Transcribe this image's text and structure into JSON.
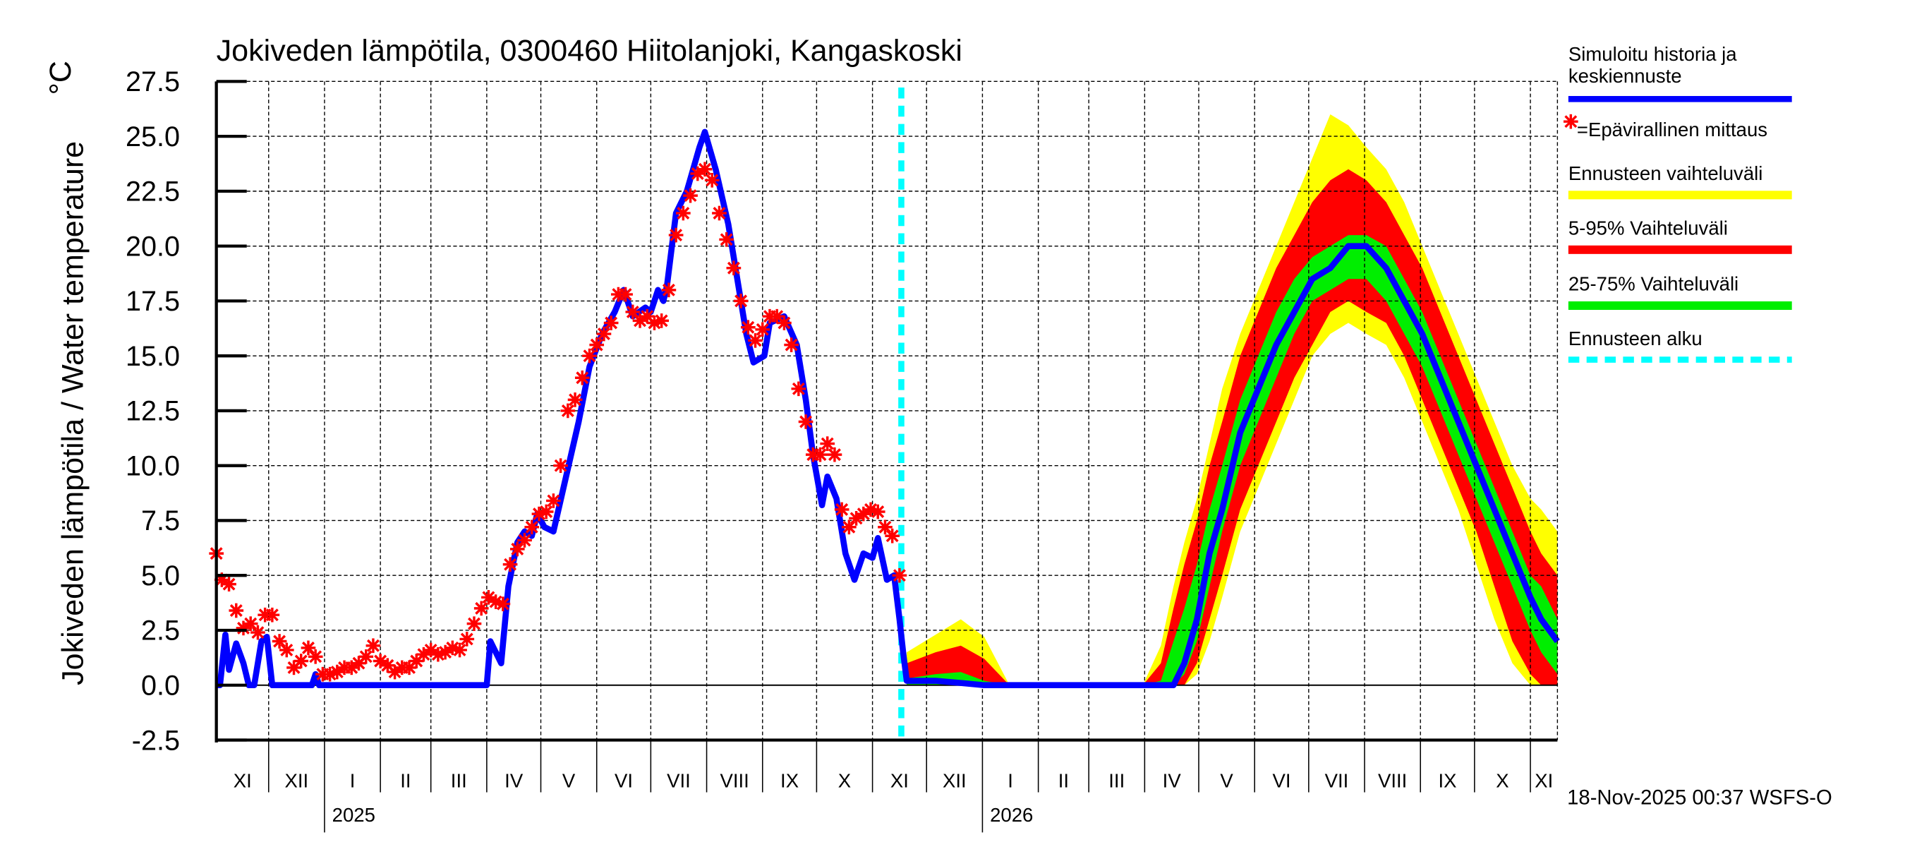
{
  "chart_data": {
    "type": "line",
    "title": "Jokiveden lämpötila, 0300460 Hiitolanjoki, Kangaskoski",
    "ylabel": "Jokiveden lämpötila / Water temperature",
    "yunit": "°C",
    "ylim": [
      -2.5,
      27.5
    ],
    "y_ticks": [
      "-2.5",
      "0.0",
      "2.5",
      "5.0",
      "7.5",
      "10.0",
      "12.5",
      "15.0",
      "17.5",
      "20.0",
      "22.5",
      "25.0",
      "27.5"
    ],
    "xlim": [
      "2024-11-02",
      "2026-11-16"
    ],
    "month_labels": [
      "XI",
      "XII",
      "I",
      "II",
      "III",
      "IV",
      "V",
      "VI",
      "VII",
      "VIII",
      "IX",
      "X",
      "XI",
      "XII",
      "I",
      "II",
      "III",
      "IV",
      "V",
      "VI",
      "VII",
      "VIII",
      "IX",
      "X",
      "XI"
    ],
    "year_labels": [
      {
        "year": "2025",
        "date": "2025-01-01"
      },
      {
        "year": "2026",
        "date": "2026-01-01"
      }
    ],
    "grid": true,
    "legend_position": "right",
    "forecast_start": "2025-11-17",
    "timestamp": "18-Nov-2025 00:37 WSFS-O",
    "colors": {
      "simulated": "#0000ff",
      "observed": "#ff0000",
      "range_full": "#ffff00",
      "range_5_95": "#ff0000",
      "range_25_75": "#00ee00",
      "forecast_start": "#00ffff"
    },
    "legend": {
      "simulated_line1": "Simuloitu historia ja",
      "simulated_line2": "keskiennuste",
      "observed": "=Epävirallinen mittaus",
      "range_full": "Ennusteen vaihteluväli",
      "range_5_95": "5-95% Vaihteluväli",
      "range_25_75": "25-75% Vaihteluväli",
      "forecast_start": "Ennusteen alku"
    },
    "simulated_history": {
      "dates": [
        "2024-11-02",
        "2024-11-04",
        "2024-11-07",
        "2024-11-09",
        "2024-11-13",
        "2024-11-17",
        "2024-11-20",
        "2024-11-23",
        "2024-11-27",
        "2024-11-30",
        "2024-12-03",
        "2024-12-25",
        "2024-12-27",
        "2024-12-29",
        "2025-04-01",
        "2025-04-03",
        "2025-04-09",
        "2025-04-13",
        "2025-04-18",
        "2025-04-22",
        "2025-04-26",
        "2025-04-29",
        "2025-05-03",
        "2025-05-08",
        "2025-05-15",
        "2025-05-22",
        "2025-05-28",
        "2025-06-04",
        "2025-06-11",
        "2025-06-16",
        "2025-06-21",
        "2025-06-28",
        "2025-07-01",
        "2025-07-05",
        "2025-07-08",
        "2025-07-10",
        "2025-07-15",
        "2025-07-21",
        "2025-07-28",
        "2025-07-31",
        "2025-08-06",
        "2025-08-13",
        "2025-08-17",
        "2025-08-23",
        "2025-08-27",
        "2025-09-02",
        "2025-09-05",
        "2025-09-13",
        "2025-09-20",
        "2025-09-25",
        "2025-09-29",
        "2025-10-04",
        "2025-10-07",
        "2025-10-12",
        "2025-10-17",
        "2025-10-22",
        "2025-10-27",
        "2025-11-01",
        "2025-11-04",
        "2025-11-09",
        "2025-11-13",
        "2025-11-16",
        "2025-11-18",
        "2025-11-20"
      ],
      "values": [
        0,
        0,
        2.3,
        0.7,
        1.9,
        1.0,
        0,
        0,
        2.0,
        2.2,
        0,
        0,
        0.5,
        0,
        0,
        2.0,
        1.0,
        4.5,
        6.5,
        7.0,
        6.8,
        7.8,
        7.2,
        7.0,
        9.5,
        12,
        14.5,
        16,
        17,
        18,
        16.8,
        17.2,
        17,
        18,
        17.5,
        18.2,
        21.5,
        22.5,
        24.5,
        25.2,
        23.5,
        21,
        19,
        16,
        14.7,
        15,
        16.5,
        16.8,
        15.5,
        13,
        10.5,
        8.2,
        9.5,
        8.5,
        6,
        4.8,
        6,
        5.8,
        6.7,
        4.8,
        5,
        3,
        1.5,
        0.2
      ]
    },
    "observations": {
      "dates": [
        "2024-11-02",
        "2024-11-05",
        "2024-11-09",
        "2024-11-13",
        "2024-11-17",
        "2024-11-21",
        "2024-11-25",
        "2024-11-29",
        "2024-12-03",
        "2024-12-07",
        "2024-12-11",
        "2024-12-15",
        "2024-12-19",
        "2024-12-23",
        "2024-12-27",
        "2024-12-31",
        "2025-01-04",
        "2025-01-08",
        "2025-01-12",
        "2025-01-16",
        "2025-01-20",
        "2025-01-24",
        "2025-01-28",
        "2025-02-01",
        "2025-02-05",
        "2025-02-09",
        "2025-02-13",
        "2025-02-17",
        "2025-02-21",
        "2025-02-25",
        "2025-03-01",
        "2025-03-05",
        "2025-03-09",
        "2025-03-13",
        "2025-03-17",
        "2025-03-21",
        "2025-03-25",
        "2025-03-29",
        "2025-04-02",
        "2025-04-06",
        "2025-04-10",
        "2025-04-14",
        "2025-04-18",
        "2025-04-22",
        "2025-04-26",
        "2025-04-30",
        "2025-05-04",
        "2025-05-08",
        "2025-05-12",
        "2025-05-16",
        "2025-05-20",
        "2025-05-24",
        "2025-05-28",
        "2025-06-01",
        "2025-06-05",
        "2025-06-09",
        "2025-06-13",
        "2025-06-17",
        "2025-06-21",
        "2025-06-25",
        "2025-06-29",
        "2025-07-03",
        "2025-07-07",
        "2025-07-11",
        "2025-07-15",
        "2025-07-19",
        "2025-07-23",
        "2025-07-27",
        "2025-07-31",
        "2025-08-04",
        "2025-08-08",
        "2025-08-12",
        "2025-08-16",
        "2025-08-20",
        "2025-08-24",
        "2025-08-28",
        "2025-09-01",
        "2025-09-05",
        "2025-09-09",
        "2025-09-13",
        "2025-09-17",
        "2025-09-21",
        "2025-09-25",
        "2025-09-29",
        "2025-10-03",
        "2025-10-07",
        "2025-10-11",
        "2025-10-15",
        "2025-10-19",
        "2025-10-23",
        "2025-10-27",
        "2025-10-31",
        "2025-11-04",
        "2025-11-08",
        "2025-11-12",
        "2025-11-16"
      ],
      "values": [
        6.0,
        4.8,
        4.6,
        3.4,
        2.6,
        2.8,
        2.4,
        3.2,
        3.2,
        2.0,
        1.6,
        0.8,
        1.1,
        1.7,
        1.3,
        0.5,
        0.5,
        0.6,
        0.8,
        0.8,
        1.0,
        1.3,
        1.8,
        1.1,
        0.9,
        0.6,
        0.8,
        0.8,
        1.1,
        1.4,
        1.6,
        1.4,
        1.5,
        1.7,
        1.6,
        2.1,
        2.8,
        3.5,
        4.0,
        3.8,
        3.7,
        5.5,
        6.2,
        6.6,
        7.2,
        7.8,
        7.9,
        8.4,
        10.0,
        12.5,
        13.0,
        14.0,
        15.0,
        15.5,
        16.0,
        16.5,
        17.8,
        17.8,
        17.0,
        16.6,
        16.8,
        16.5,
        16.6,
        18.0,
        20.5,
        21.5,
        22.3,
        23.3,
        23.5,
        23.0,
        21.5,
        20.3,
        19.0,
        17.5,
        16.3,
        15.7,
        16.2,
        16.8,
        16.8,
        16.5,
        15.5,
        13.5,
        12.0,
        10.5,
        10.5,
        11.0,
        10.5,
        8.0,
        7.2,
        7.6,
        7.8,
        8.0,
        7.9,
        7.2,
        6.8,
        5.0
      ]
    },
    "forecast": {
      "dates": [
        "2025-11-20",
        "2025-12-06",
        "2025-12-20",
        "2026-01-02",
        "2026-01-16",
        "2026-03-31",
        "2026-04-10",
        "2026-04-17",
        "2026-04-23",
        "2026-04-30",
        "2026-05-07",
        "2026-05-14",
        "2026-05-24",
        "2026-06-03",
        "2026-06-13",
        "2026-06-23",
        "2026-07-03",
        "2026-07-13",
        "2026-07-23",
        "2026-08-02",
        "2026-08-13",
        "2026-08-23",
        "2026-09-02",
        "2026-09-12",
        "2026-09-22",
        "2026-10-02",
        "2026-10-12",
        "2026-10-22",
        "2026-11-01",
        "2026-11-07",
        "2026-11-16"
      ],
      "min": [
        0,
        0,
        0,
        0,
        0,
        0,
        0,
        0,
        0,
        0.5,
        2,
        4,
        7,
        9,
        11,
        13,
        15,
        16,
        16.5,
        16,
        15.5,
        14,
        12,
        10,
        8,
        5.5,
        3,
        1,
        0,
        0,
        0
      ],
      "p5": [
        0,
        0,
        0,
        0,
        0,
        0,
        0,
        0,
        0,
        1,
        3,
        5,
        8,
        10,
        12,
        14,
        15.5,
        17,
        17.5,
        17,
        16.5,
        15,
        13,
        11,
        9,
        7,
        4.5,
        2,
        0.5,
        0,
        0
      ],
      "p25": [
        0,
        0,
        0,
        0,
        0,
        0,
        0,
        0,
        0.5,
        2,
        4.5,
        7,
        10,
        12,
        14,
        16,
        17.5,
        18,
        18.5,
        18.5,
        17.5,
        16,
        14.5,
        12.5,
        10.5,
        8.5,
        6.5,
        4.5,
        2.5,
        1.5,
        0.5
      ],
      "median": [
        0.2,
        0.2,
        0.1,
        0,
        0,
        0,
        0,
        0,
        1,
        3,
        6,
        8,
        11.5,
        13.5,
        15.5,
        17,
        18.5,
        19,
        20,
        20,
        19,
        17.5,
        16,
        14,
        12,
        10,
        8,
        6,
        4,
        3,
        2
      ],
      "p75": [
        0.3,
        0.5,
        0.6,
        0.2,
        0,
        0,
        0.2,
        2,
        3.5,
        5.5,
        8,
        10,
        13,
        15,
        17,
        18.5,
        19.5,
        20,
        20.5,
        20.5,
        20,
        18.5,
        17,
        15,
        13,
        11,
        9,
        7,
        5,
        4.5,
        3
      ],
      "p95": [
        1,
        1.5,
        1.8,
        1.2,
        0,
        0,
        1.0,
        3.5,
        5.5,
        7.5,
        10,
        12,
        15,
        17,
        19,
        20.5,
        22,
        23,
        23.5,
        23,
        22,
        20.5,
        19,
        17,
        15,
        13,
        11,
        9,
        7,
        6,
        5
      ],
      "max": [
        1.5,
        2.3,
        3.0,
        2.2,
        0,
        0,
        1.8,
        4.5,
        6.5,
        8.5,
        11,
        13.5,
        16,
        18,
        20,
        22,
        24,
        26,
        25.5,
        24.5,
        23.5,
        22,
        20,
        18,
        16,
        14,
        12,
        10,
        8.5,
        8,
        7
      ]
    }
  }
}
